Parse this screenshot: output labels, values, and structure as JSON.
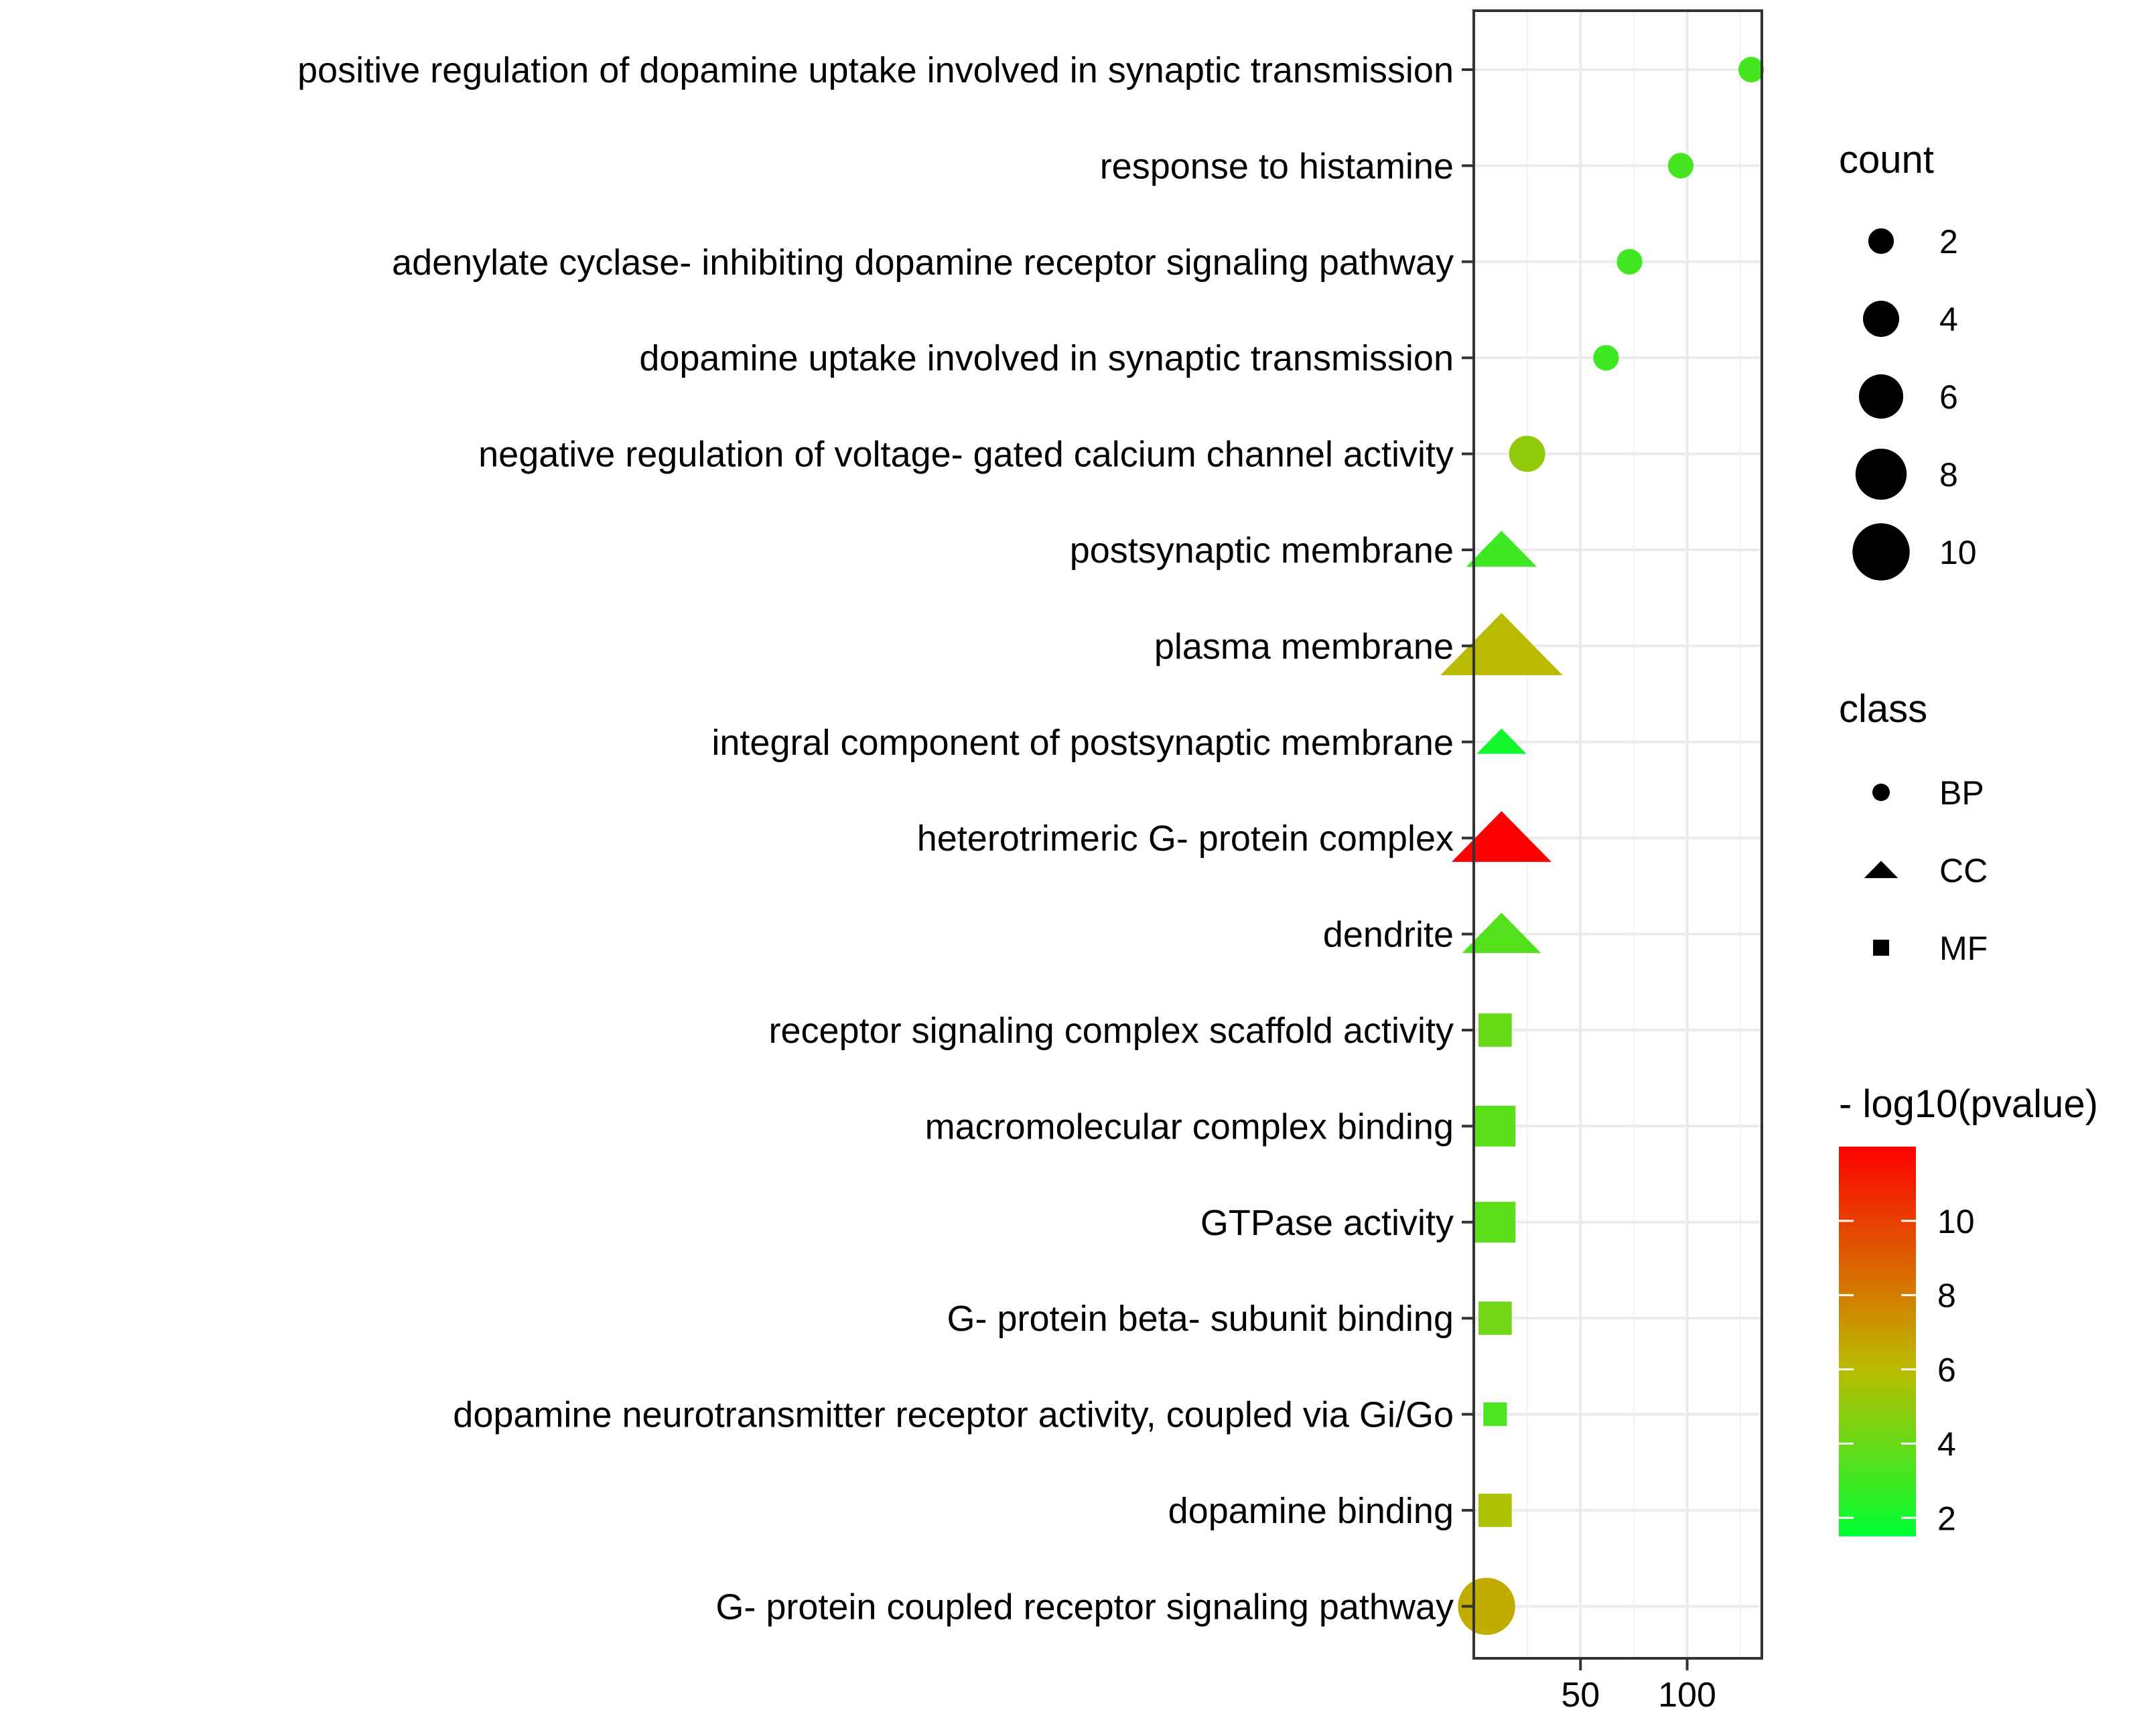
{
  "chart_data": {
    "type": "scatter",
    "title": "",
    "xlabel": "",
    "ylabel": "",
    "xlim": [
      0,
      135
    ],
    "xticks": [
      50,
      100
    ],
    "grid": true,
    "categories": [
      "positive regulation of dopamine uptake involved in synaptic transmission",
      "response to histamine",
      "adenylate cyclase- inhibiting dopamine receptor signaling pathway",
      "dopamine uptake involved in synaptic transmission",
      "negative regulation of voltage- gated calcium channel activity",
      "postsynaptic membrane",
      "plasma membrane",
      "integral component of postsynaptic membrane",
      "heterotrimeric G- protein complex",
      "dendrite",
      "receptor signaling complex scaffold activity",
      "macromolecular complex binding",
      "GTPase activity",
      "G- protein beta- subunit binding",
      "dopamine neurotransmitter receptor activity, coupled via Gi/Go",
      "dopamine binding",
      "G- protein coupled receptor signaling pathway"
    ],
    "points": [
      {
        "x": 130,
        "count": 2,
        "class": "BP",
        "neglog10p": 3.2
      },
      {
        "x": 97,
        "count": 2,
        "class": "BP",
        "neglog10p": 3.2
      },
      {
        "x": 73,
        "count": 2,
        "class": "BP",
        "neglog10p": 3.1
      },
      {
        "x": 62,
        "count": 2,
        "class": "BP",
        "neglog10p": 3.0
      },
      {
        "x": 25,
        "count": 4,
        "class": "BP",
        "neglog10p": 5.0
      },
      {
        "x": 13,
        "count": 4,
        "class": "CC",
        "neglog10p": 3.0
      },
      {
        "x": 13,
        "count": 12,
        "class": "CC",
        "neglog10p": 6.0
      },
      {
        "x": 13,
        "count": 2,
        "class": "CC",
        "neglog10p": 2.0
      },
      {
        "x": 13,
        "count": 8,
        "class": "CC",
        "neglog10p": 12.0
      },
      {
        "x": 13,
        "count": 5,
        "class": "CC",
        "neglog10p": 3.5
      },
      {
        "x": 10,
        "count": 4,
        "class": "MF",
        "neglog10p": 4.0
      },
      {
        "x": 10,
        "count": 6,
        "class": "MF",
        "neglog10p": 3.7
      },
      {
        "x": 10,
        "count": 6,
        "class": "MF",
        "neglog10p": 3.7
      },
      {
        "x": 10,
        "count": 4,
        "class": "MF",
        "neglog10p": 4.2
      },
      {
        "x": 10,
        "count": 2,
        "class": "MF",
        "neglog10p": 3.3
      },
      {
        "x": 10,
        "count": 4,
        "class": "MF",
        "neglog10p": 5.7
      },
      {
        "x": 6,
        "count": 10,
        "class": "BP",
        "neglog10p": 6.5
      }
    ],
    "legend": {
      "count": {
        "title": "count",
        "values": [
          2,
          4,
          6,
          8,
          10
        ],
        "labels": [
          "2",
          "4",
          "6",
          "8",
          "10"
        ]
      },
      "class": {
        "title": "class",
        "values": [
          "BP",
          "CC",
          "MF"
        ]
      },
      "color": {
        "title": "- log10(pvalue)",
        "range": [
          1.5,
          12
        ],
        "ticks": [
          2,
          4,
          6,
          8,
          10
        ],
        "labels": [
          "2",
          "4",
          "6",
          "8",
          "10"
        ],
        "low_color": "#00ff33",
        "mid_color": "#bbbb00",
        "high_color": "#ff0000"
      }
    }
  }
}
